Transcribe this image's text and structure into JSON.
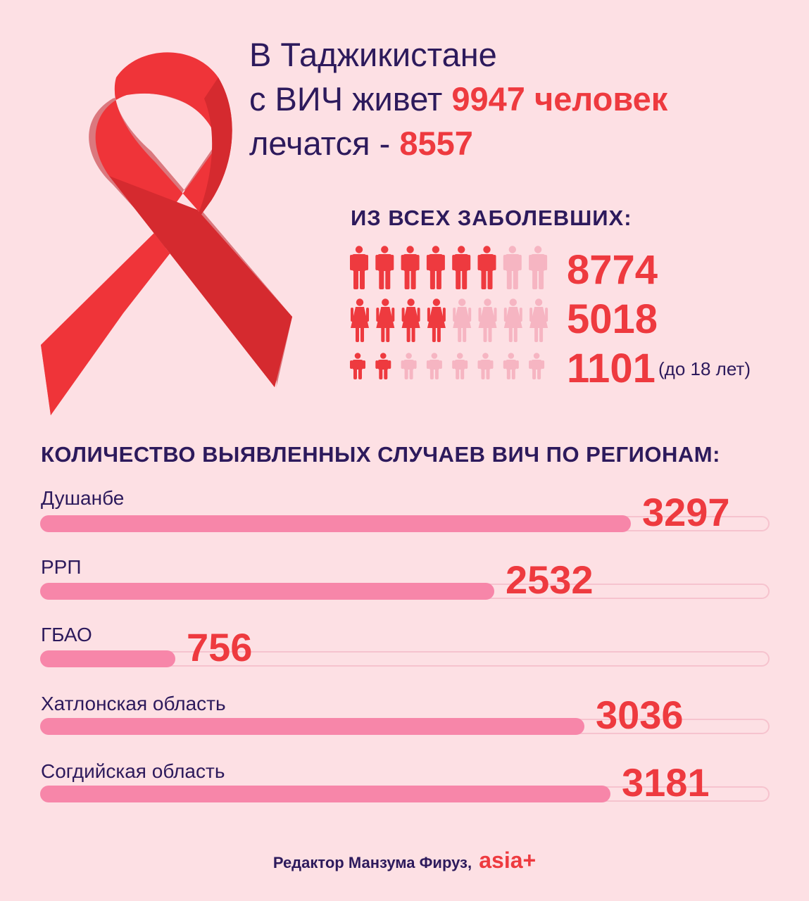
{
  "headline": {
    "line1": "В Таджикистане",
    "line2_prefix": "с ВИЧ живет ",
    "line2_highlight": "9947 человек",
    "line3_prefix": "лечатся - ",
    "line3_highlight": "8557"
  },
  "subheading": "ИЗ ВСЕХ ЗАБОЛЕВШИХ:",
  "colors": {
    "accent": "#ee3a3f",
    "icon_light": "#f6b5c2",
    "bar": "#f786a9",
    "text": "#2d1a5c"
  },
  "breakdown": [
    {
      "icon": "man-icon",
      "filled": 6,
      "total": 8,
      "value": "8774",
      "note": ""
    },
    {
      "icon": "woman-icon",
      "filled": 4,
      "total": 8,
      "value": "5018",
      "note": ""
    },
    {
      "icon": "child-icon",
      "filled": 2,
      "total": 8,
      "value": "1101",
      "note": "(до 18 лет)"
    }
  ],
  "chart_data": {
    "type": "bar",
    "orientation": "horizontal",
    "title": "КОЛИЧЕСТВО ВЫЯВЛЕННЫХ СЛУЧАЕВ ВИЧ ПО РЕГИОНАМ:",
    "categories": [
      "Душанбе",
      "РРП",
      "ГБАО",
      "Хатлонская область",
      "Согдийская область"
    ],
    "values": [
      3297,
      2532,
      756,
      3036,
      3181
    ],
    "value_labels": [
      "3297",
      "2532",
      "756",
      "3036",
      "3181"
    ],
    "xlim": [
      0,
      4070
    ],
    "grid": false,
    "legend": "none"
  },
  "footer": {
    "credit": "Редактор Манзума Фируз,",
    "logo": "asia+"
  }
}
